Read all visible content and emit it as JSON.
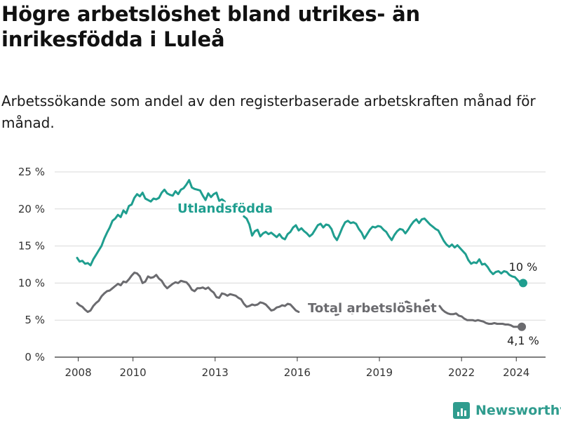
{
  "title": "Högre arbetslöshet bland utrikes- än inrikesfödda i Luleå",
  "subtitle": "Arbetssökande som andel av den registerbaserade arbetskraften månad för månad.",
  "brand": "Newsworthy",
  "chart_data": {
    "type": "line",
    "x_ticks": [
      "2008",
      "2010",
      "2013",
      "2016",
      "2019",
      "2022",
      "2024"
    ],
    "x_tick_dates": [
      2008.0,
      2010.0,
      2013.0,
      2016.0,
      2019.0,
      2022.0,
      2024.0
    ],
    "y_ticks": [
      "0 %",
      "5 %",
      "10 %",
      "15 %",
      "20 %",
      "25 %"
    ],
    "y_tick_values": [
      0,
      5,
      10,
      15,
      20,
      25
    ],
    "ylim": [
      0,
      25
    ],
    "grid": true,
    "series": [
      {
        "name": "Utlandsfödda",
        "color": "#1f9e8f",
        "end_label": "10 %",
        "points": [
          [
            2007.96,
            13.4
          ],
          [
            2008.05,
            12.9
          ],
          [
            2008.15,
            13.0
          ],
          [
            2008.25,
            12.6
          ],
          [
            2008.35,
            12.7
          ],
          [
            2008.45,
            12.4
          ],
          [
            2008.55,
            13.2
          ],
          [
            2008.65,
            13.8
          ],
          [
            2008.75,
            14.4
          ],
          [
            2008.85,
            15.0
          ],
          [
            2008.95,
            16.0
          ],
          [
            2009.05,
            16.8
          ],
          [
            2009.15,
            17.5
          ],
          [
            2009.25,
            18.4
          ],
          [
            2009.35,
            18.7
          ],
          [
            2009.45,
            19.2
          ],
          [
            2009.55,
            18.9
          ],
          [
            2009.65,
            19.8
          ],
          [
            2009.75,
            19.4
          ],
          [
            2009.85,
            20.4
          ],
          [
            2009.95,
            20.6
          ],
          [
            2010.05,
            21.5
          ],
          [
            2010.15,
            22.0
          ],
          [
            2010.25,
            21.7
          ],
          [
            2010.35,
            22.2
          ],
          [
            2010.45,
            21.4
          ],
          [
            2010.55,
            21.2
          ],
          [
            2010.65,
            21.0
          ],
          [
            2010.75,
            21.4
          ],
          [
            2010.85,
            21.3
          ],
          [
            2010.95,
            21.5
          ],
          [
            2011.05,
            22.2
          ],
          [
            2011.15,
            22.6
          ],
          [
            2011.25,
            22.1
          ],
          [
            2011.35,
            21.9
          ],
          [
            2011.45,
            21.8
          ],
          [
            2011.55,
            22.4
          ],
          [
            2011.65,
            22.0
          ],
          [
            2011.75,
            22.6
          ],
          [
            2011.85,
            22.8
          ],
          [
            2011.95,
            23.3
          ],
          [
            2012.05,
            23.9
          ],
          [
            2012.15,
            22.9
          ],
          [
            2012.25,
            22.7
          ],
          [
            2012.35,
            22.6
          ],
          [
            2012.45,
            22.5
          ],
          [
            2012.55,
            21.8
          ],
          [
            2012.65,
            21.2
          ],
          [
            2012.75,
            22.1
          ],
          [
            2012.85,
            21.6
          ],
          [
            2012.95,
            22.0
          ],
          [
            2013.05,
            22.2
          ],
          [
            2013.15,
            21.1
          ],
          [
            2013.25,
            21.3
          ],
          [
            2013.35,
            21.0
          ],
          null,
          [
            2014.05,
            19.0
          ],
          [
            2014.15,
            18.7
          ],
          [
            2014.25,
            17.9
          ],
          [
            2014.35,
            16.4
          ],
          [
            2014.45,
            17.0
          ],
          [
            2014.55,
            17.2
          ],
          [
            2014.65,
            16.3
          ],
          [
            2014.75,
            16.7
          ],
          [
            2014.85,
            16.9
          ],
          [
            2014.95,
            16.6
          ],
          [
            2015.05,
            16.8
          ],
          [
            2015.15,
            16.5
          ],
          [
            2015.25,
            16.2
          ],
          [
            2015.35,
            16.6
          ],
          [
            2015.45,
            16.1
          ],
          [
            2015.55,
            15.9
          ],
          [
            2015.65,
            16.6
          ],
          [
            2015.75,
            16.9
          ],
          [
            2015.85,
            17.5
          ],
          [
            2015.95,
            17.8
          ],
          [
            2016.05,
            17.1
          ],
          [
            2016.15,
            17.4
          ],
          [
            2016.25,
            17.0
          ],
          [
            2016.35,
            16.7
          ],
          [
            2016.45,
            16.3
          ],
          [
            2016.55,
            16.6
          ],
          [
            2016.65,
            17.2
          ],
          [
            2016.75,
            17.8
          ],
          [
            2016.85,
            18.0
          ],
          [
            2016.95,
            17.5
          ],
          [
            2017.05,
            17.9
          ],
          [
            2017.15,
            17.8
          ],
          [
            2017.25,
            17.3
          ],
          [
            2017.35,
            16.3
          ],
          [
            2017.45,
            15.8
          ],
          [
            2017.55,
            16.6
          ],
          [
            2017.65,
            17.5
          ],
          [
            2017.75,
            18.2
          ],
          [
            2017.85,
            18.4
          ],
          [
            2017.95,
            18.1
          ],
          [
            2018.05,
            18.2
          ],
          [
            2018.15,
            18.0
          ],
          [
            2018.25,
            17.3
          ],
          [
            2018.35,
            16.8
          ],
          [
            2018.45,
            16.0
          ],
          [
            2018.55,
            16.6
          ],
          [
            2018.65,
            17.2
          ],
          [
            2018.75,
            17.6
          ],
          [
            2018.85,
            17.5
          ],
          [
            2018.95,
            17.7
          ],
          [
            2019.05,
            17.6
          ],
          [
            2019.15,
            17.2
          ],
          [
            2019.25,
            16.9
          ],
          [
            2019.35,
            16.3
          ],
          [
            2019.45,
            15.8
          ],
          [
            2019.55,
            16.5
          ],
          [
            2019.65,
            17.0
          ],
          [
            2019.75,
            17.3
          ],
          [
            2019.85,
            17.2
          ],
          [
            2019.95,
            16.7
          ],
          [
            2020.05,
            17.2
          ],
          [
            2020.15,
            17.8
          ],
          [
            2020.25,
            18.3
          ],
          [
            2020.35,
            18.6
          ],
          [
            2020.45,
            18.1
          ],
          [
            2020.55,
            18.6
          ],
          [
            2020.65,
            18.7
          ],
          [
            2020.75,
            18.3
          ],
          [
            2020.85,
            17.9
          ],
          [
            2020.95,
            17.6
          ],
          [
            2021.05,
            17.3
          ],
          [
            2021.15,
            17.1
          ],
          [
            2021.25,
            16.4
          ],
          [
            2021.35,
            15.7
          ],
          [
            2021.45,
            15.2
          ],
          [
            2021.55,
            14.9
          ],
          [
            2021.65,
            15.2
          ],
          [
            2021.75,
            14.8
          ],
          [
            2021.85,
            15.1
          ],
          [
            2021.95,
            14.7
          ],
          [
            2022.05,
            14.3
          ],
          [
            2022.15,
            13.9
          ],
          [
            2022.25,
            13.1
          ],
          [
            2022.35,
            12.6
          ],
          [
            2022.45,
            12.8
          ],
          [
            2022.55,
            12.7
          ],
          [
            2022.65,
            13.2
          ],
          [
            2022.75,
            12.5
          ],
          [
            2022.85,
            12.6
          ],
          [
            2022.95,
            12.2
          ],
          [
            2023.05,
            11.6
          ],
          [
            2023.15,
            11.2
          ],
          [
            2023.25,
            11.5
          ],
          [
            2023.35,
            11.6
          ],
          [
            2023.45,
            11.3
          ],
          [
            2023.55,
            11.6
          ],
          [
            2023.65,
            11.5
          ],
          [
            2023.75,
            11.1
          ],
          [
            2023.85,
            10.9
          ],
          [
            2023.95,
            10.8
          ],
          [
            2024.05,
            10.4
          ],
          [
            2024.15,
            10.0
          ],
          [
            2024.25,
            10.0
          ]
        ]
      },
      {
        "name": "Total arbetslöshet",
        "color": "#6b6b6f",
        "end_label": "4,1 %",
        "points": [
          [
            2007.96,
            7.3
          ],
          [
            2008.05,
            7.0
          ],
          [
            2008.15,
            6.8
          ],
          [
            2008.25,
            6.4
          ],
          [
            2008.35,
            6.1
          ],
          [
            2008.45,
            6.3
          ],
          [
            2008.55,
            6.9
          ],
          [
            2008.65,
            7.3
          ],
          [
            2008.75,
            7.6
          ],
          [
            2008.85,
            8.2
          ],
          [
            2008.95,
            8.6
          ],
          [
            2009.05,
            8.9
          ],
          [
            2009.15,
            9.0
          ],
          [
            2009.25,
            9.3
          ],
          [
            2009.35,
            9.6
          ],
          [
            2009.45,
            9.9
          ],
          [
            2009.55,
            9.7
          ],
          [
            2009.65,
            10.2
          ],
          [
            2009.75,
            10.1
          ],
          [
            2009.85,
            10.5
          ],
          [
            2009.95,
            11.0
          ],
          [
            2010.05,
            11.4
          ],
          [
            2010.15,
            11.3
          ],
          [
            2010.25,
            10.9
          ],
          [
            2010.35,
            10.0
          ],
          [
            2010.45,
            10.2
          ],
          [
            2010.55,
            10.9
          ],
          [
            2010.65,
            10.7
          ],
          [
            2010.75,
            10.8
          ],
          [
            2010.85,
            11.1
          ],
          [
            2010.95,
            10.6
          ],
          [
            2011.05,
            10.3
          ],
          [
            2011.15,
            9.7
          ],
          [
            2011.25,
            9.3
          ],
          [
            2011.35,
            9.6
          ],
          [
            2011.45,
            9.9
          ],
          [
            2011.55,
            10.1
          ],
          [
            2011.65,
            10.0
          ],
          [
            2011.75,
            10.3
          ],
          [
            2011.85,
            10.2
          ],
          [
            2011.95,
            10.1
          ],
          [
            2012.05,
            9.7
          ],
          [
            2012.15,
            9.1
          ],
          [
            2012.25,
            8.9
          ],
          [
            2012.35,
            9.3
          ],
          [
            2012.45,
            9.3
          ],
          [
            2012.55,
            9.4
          ],
          [
            2012.65,
            9.2
          ],
          [
            2012.75,
            9.4
          ],
          [
            2012.85,
            9.0
          ],
          [
            2012.95,
            8.7
          ],
          [
            2013.05,
            8.1
          ],
          [
            2013.15,
            8.0
          ],
          [
            2013.25,
            8.6
          ],
          [
            2013.35,
            8.5
          ],
          [
            2013.45,
            8.3
          ],
          [
            2013.55,
            8.5
          ],
          [
            2013.65,
            8.4
          ],
          [
            2013.75,
            8.3
          ],
          [
            2013.85,
            8.0
          ],
          [
            2013.95,
            7.8
          ],
          [
            2014.05,
            7.2
          ],
          [
            2014.15,
            6.8
          ],
          [
            2014.25,
            6.9
          ],
          [
            2014.35,
            7.1
          ],
          [
            2014.45,
            7.0
          ],
          [
            2014.55,
            7.1
          ],
          [
            2014.65,
            7.4
          ],
          [
            2014.75,
            7.3
          ],
          [
            2014.85,
            7.1
          ],
          [
            2014.95,
            6.7
          ],
          [
            2015.05,
            6.3
          ],
          [
            2015.15,
            6.4
          ],
          [
            2015.25,
            6.7
          ],
          [
            2015.35,
            6.8
          ],
          [
            2015.45,
            7.0
          ],
          [
            2015.55,
            6.9
          ],
          [
            2015.65,
            7.2
          ],
          [
            2015.75,
            7.1
          ],
          [
            2015.85,
            6.7
          ],
          [
            2015.95,
            6.3
          ],
          [
            2016.05,
            6.1
          ],
          null,
          [
            2017.4,
            5.7
          ],
          [
            2017.5,
            5.8
          ],
          null,
          [
            2018.0,
            5.9
          ],
          [
            2018.1,
            6.0
          ],
          null,
          [
            2019.9,
            7.4
          ],
          [
            2020.0,
            7.5
          ],
          [
            2020.1,
            7.3
          ],
          null,
          [
            2020.7,
            7.6
          ],
          [
            2020.8,
            7.7
          ],
          null,
          [
            2021.2,
            6.9
          ],
          [
            2021.3,
            6.4
          ],
          [
            2021.4,
            6.1
          ],
          [
            2021.5,
            5.9
          ],
          [
            2021.6,
            5.8
          ],
          [
            2021.7,
            5.8
          ],
          [
            2021.8,
            5.9
          ],
          [
            2021.9,
            5.6
          ],
          [
            2022.0,
            5.5
          ],
          [
            2022.1,
            5.2
          ],
          [
            2022.2,
            5.0
          ],
          [
            2022.3,
            5.0
          ],
          [
            2022.4,
            5.0
          ],
          [
            2022.5,
            4.9
          ],
          [
            2022.6,
            5.0
          ],
          [
            2022.7,
            4.9
          ],
          [
            2022.8,
            4.8
          ],
          [
            2022.9,
            4.6
          ],
          [
            2023.0,
            4.5
          ],
          [
            2023.1,
            4.5
          ],
          [
            2023.2,
            4.6
          ],
          [
            2023.3,
            4.5
          ],
          [
            2023.4,
            4.5
          ],
          [
            2023.5,
            4.5
          ],
          [
            2023.6,
            4.4
          ],
          [
            2023.7,
            4.4
          ],
          [
            2023.8,
            4.3
          ],
          [
            2023.9,
            4.1
          ],
          [
            2024.0,
            4.1
          ],
          [
            2024.1,
            4.1
          ],
          [
            2024.2,
            4.1
          ]
        ]
      }
    ]
  }
}
